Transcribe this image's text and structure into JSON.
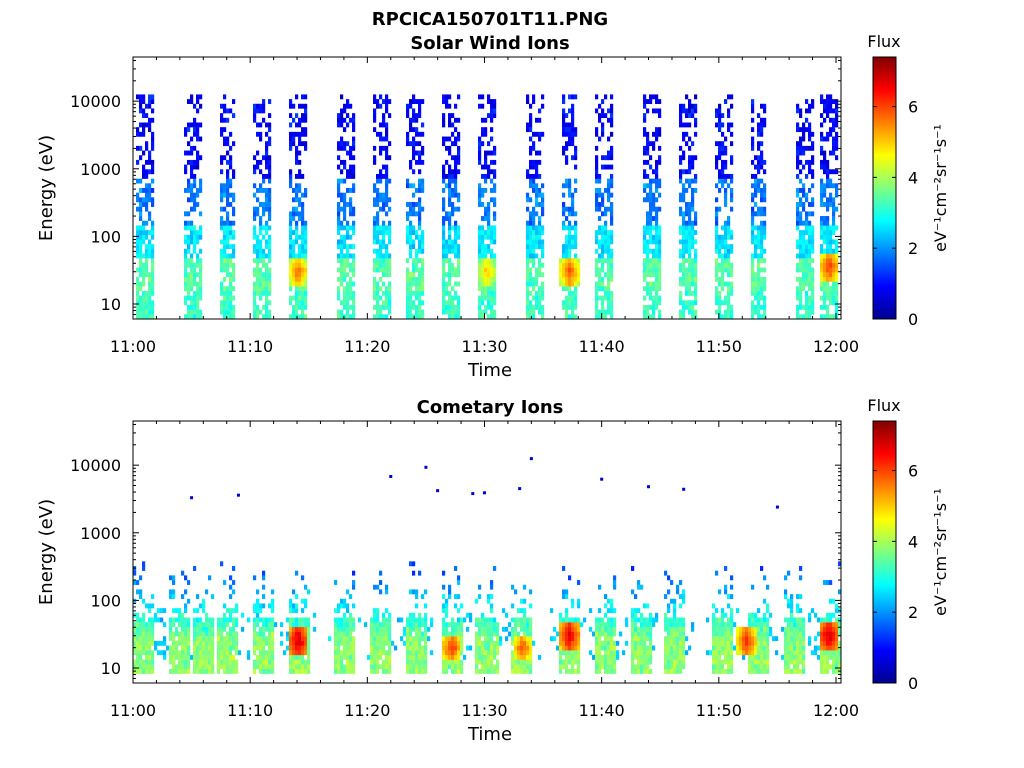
{
  "figure_title": "RPCICA150701T11.PNG",
  "chart_data": [
    {
      "type": "heatmap",
      "title": "Solar Wind Ions",
      "xlabel": "Time",
      "ylabel": "Energy (eV)",
      "xticks": [
        "11:00",
        "11:10",
        "11:20",
        "11:30",
        "11:40",
        "11:50",
        "12:00"
      ],
      "xlim": [
        "11:00",
        "12:00"
      ],
      "yscale": "log",
      "ylim": [
        6,
        45000
      ],
      "yticks": [
        10,
        100,
        1000,
        10000
      ],
      "ytick_labels": [
        "10",
        "100",
        "1000",
        "10000"
      ],
      "colorbar": {
        "title": "Flux",
        "label": "eV⁻¹cm⁻²sr⁻¹s⁻¹",
        "range": [
          0,
          7.4
        ],
        "ticks": [
          "0",
          "2",
          "4",
          "6"
        ],
        "colormap": "jet"
      },
      "burst_times": [
        "11:01",
        "11:05",
        "11:08",
        "11:11",
        "11:14",
        "11:18",
        "11:21",
        "11:24",
        "11:27",
        "11:30",
        "11:34",
        "11:37",
        "11:40",
        "11:44",
        "11:47",
        "11:50",
        "11:53",
        "11:57",
        "11:59"
      ],
      "bands": [
        {
          "energy_eV": [
            700,
            13000
          ],
          "flux": 0.9
        },
        {
          "energy_eV": [
            150,
            700
          ],
          "flux": 1.8
        },
        {
          "energy_eV": [
            50,
            150
          ],
          "flux": 2.6
        },
        {
          "energy_eV": [
            15,
            50
          ],
          "flux": 3.4
        },
        {
          "energy_eV": [
            6,
            15
          ],
          "flux": 3.2
        }
      ],
      "hotspots": [
        {
          "time": "11:14",
          "energy_eV": 30,
          "flux": 5.8
        },
        {
          "time": "11:37",
          "energy_eV": 30,
          "flux": 6.0
        },
        {
          "time": "11:59",
          "energy_eV": 35,
          "flux": 6.2
        },
        {
          "time": "11:30",
          "energy_eV": 30,
          "flux": 5.2
        }
      ]
    },
    {
      "type": "heatmap",
      "title": "Cometary Ions",
      "xlabel": "Time",
      "ylabel": "Energy (eV)",
      "xticks": [
        "11:00",
        "11:10",
        "11:20",
        "11:30",
        "11:40",
        "11:50",
        "12:00"
      ],
      "xlim": [
        "11:00",
        "12:00"
      ],
      "yscale": "log",
      "ylim": [
        6,
        45000
      ],
      "yticks": [
        10,
        100,
        1000,
        10000
      ],
      "ytick_labels": [
        "10",
        "100",
        "1000",
        "10000"
      ],
      "colorbar": {
        "title": "Flux",
        "label": "eV⁻¹cm⁻²sr⁻¹s⁻¹",
        "range": [
          0,
          7.4
        ],
        "ticks": [
          "0",
          "2",
          "4",
          "6"
        ],
        "colormap": "jet"
      },
      "burst_times": [
        "11:01",
        "11:04",
        "11:06",
        "11:08",
        "11:11",
        "11:14",
        "11:18",
        "11:21",
        "11:24",
        "11:27",
        "11:30",
        "11:33",
        "11:37",
        "11:40",
        "11:43",
        "11:46",
        "11:50",
        "11:53",
        "11:56",
        "11:59"
      ],
      "peak_energy_eV": 25,
      "hotspots": [
        {
          "time": "11:14",
          "energy_eV": 25,
          "flux": 7.0
        },
        {
          "time": "11:37",
          "energy_eV": 30,
          "flux": 6.8
        },
        {
          "time": "11:59",
          "energy_eV": 30,
          "flux": 7.0
        },
        {
          "time": "11:27",
          "energy_eV": 20,
          "flux": 6.2
        },
        {
          "time": "11:33",
          "energy_eV": 20,
          "flux": 6.0
        },
        {
          "time": "11:52",
          "energy_eV": 25,
          "flux": 6.3
        }
      ],
      "scatter_high_energy": [
        {
          "time": "11:22",
          "energy_eV": 6800
        },
        {
          "time": "11:25",
          "energy_eV": 9300
        },
        {
          "time": "11:34",
          "energy_eV": 12500
        },
        {
          "time": "11:40",
          "energy_eV": 6200
        },
        {
          "time": "11:44",
          "energy_eV": 4800
        },
        {
          "time": "11:47",
          "energy_eV": 4400
        },
        {
          "time": "11:05",
          "energy_eV": 3300
        },
        {
          "time": "11:09",
          "energy_eV": 3600
        },
        {
          "time": "11:29",
          "energy_eV": 3800
        },
        {
          "time": "11:30",
          "energy_eV": 3900
        },
        {
          "time": "11:26",
          "energy_eV": 4200
        },
        {
          "time": "11:33",
          "energy_eV": 4500
        },
        {
          "time": "11:55",
          "energy_eV": 2400
        }
      ]
    }
  ]
}
